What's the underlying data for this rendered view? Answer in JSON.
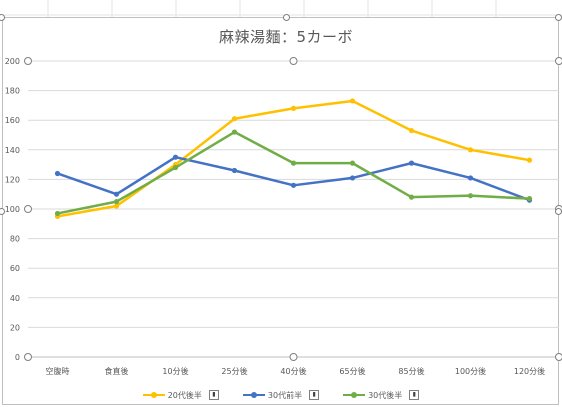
{
  "chart_data": {
    "type": "line",
    "title": "麻辣湯麵：5カーボ",
    "categories": [
      "空腹時",
      "食直後",
      "10分後",
      "25分後",
      "40分後",
      "65分後",
      "85分後",
      "100分後",
      "120分後"
    ],
    "ylim": [
      0,
      200
    ],
    "yticks": [
      0,
      20,
      40,
      60,
      80,
      100,
      120,
      140,
      160,
      180,
      200
    ],
    "grid": true,
    "legend_position": "bottom",
    "series": [
      {
        "name": "20代後半",
        "color": "#ffc000",
        "values": [
          95,
          102,
          130,
          161,
          168,
          173,
          153,
          140,
          133
        ]
      },
      {
        "name": "30代前半",
        "color": "#4472c4",
        "values": [
          124,
          110,
          135,
          126,
          116,
          121,
          131,
          121,
          106
        ]
      },
      {
        "name": "30代後半",
        "color": "#70ad47",
        "values": [
          97,
          105,
          128,
          152,
          131,
          131,
          108,
          109,
          107
        ]
      }
    ]
  },
  "legend_filter_icon": "filter-icon"
}
